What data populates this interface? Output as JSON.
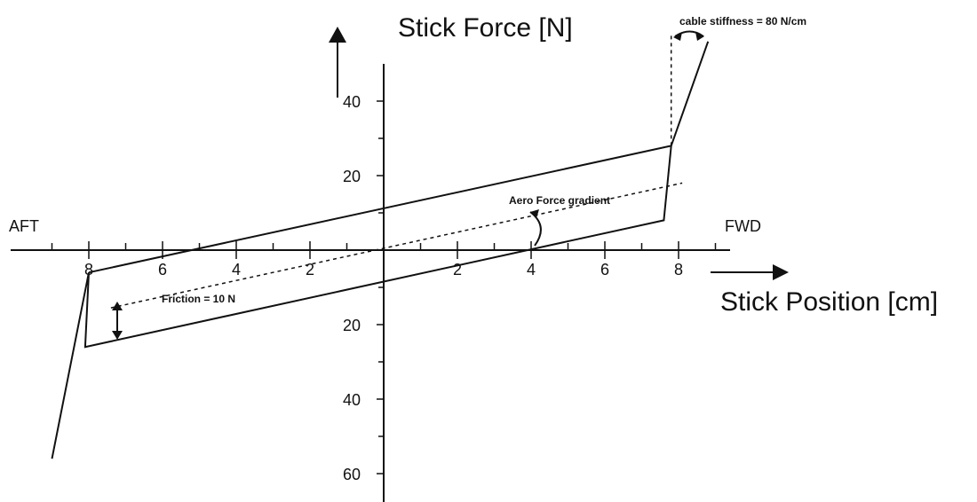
{
  "chart_data": {
    "type": "line",
    "title": "",
    "ylabel": "Stick Force [N]",
    "xlabel": "Stick Position [cm]",
    "aft_label": "AFT",
    "fwd_label": "FWD",
    "xlim": [
      -10,
      10
    ],
    "ylim": [
      -70,
      50
    ],
    "x_ticks_major": [
      -8,
      -6,
      -4,
      -2,
      2,
      4,
      6,
      8
    ],
    "x_ticks_minor": [
      -9,
      -7,
      -5,
      -3,
      -1,
      1,
      3,
      5,
      7,
      9
    ],
    "x_tick_labels": [
      {
        "value": -8,
        "text": "8"
      },
      {
        "value": -6,
        "text": "6"
      },
      {
        "value": -4,
        "text": "4"
      },
      {
        "value": -2,
        "text": "2"
      },
      {
        "value": 2,
        "text": "2"
      },
      {
        "value": 4,
        "text": "4"
      },
      {
        "value": 6,
        "text": "6"
      },
      {
        "value": 8,
        "text": "8"
      }
    ],
    "y_tick_labels": [
      {
        "value": 40,
        "text": "40"
      },
      {
        "value": 20,
        "text": "20"
      },
      {
        "value": -20,
        "text": "20"
      },
      {
        "value": -40,
        "text": "40"
      },
      {
        "value": -60,
        "text": "60"
      }
    ],
    "y_ticks_minor": [
      30,
      10,
      -10,
      -30,
      -50
    ],
    "series": [
      {
        "style": "solid",
        "points": [
          [
            -8.0,
            -6.0
          ],
          [
            7.8,
            28.0
          ],
          [
            8.8,
            56.0
          ]
        ]
      },
      {
        "style": "solid",
        "points": [
          [
            -9.0,
            -56.0
          ],
          [
            -8.0,
            -6.0
          ],
          [
            -8.1,
            -26.0
          ],
          [
            7.6,
            8.0
          ],
          [
            7.8,
            28.0
          ]
        ]
      },
      {
        "style": "dashed",
        "points": [
          [
            -7.4,
            -15.5
          ],
          [
            8.1,
            18.0
          ]
        ]
      },
      {
        "style": "dashed",
        "points": [
          [
            7.8,
            28.0
          ],
          [
            7.8,
            58.0
          ]
        ]
      }
    ],
    "annotations": {
      "friction": "Friction = 10 N",
      "aero": "Aero Force gradient",
      "cable": "cable stiffness = 80 N/cm"
    }
  }
}
